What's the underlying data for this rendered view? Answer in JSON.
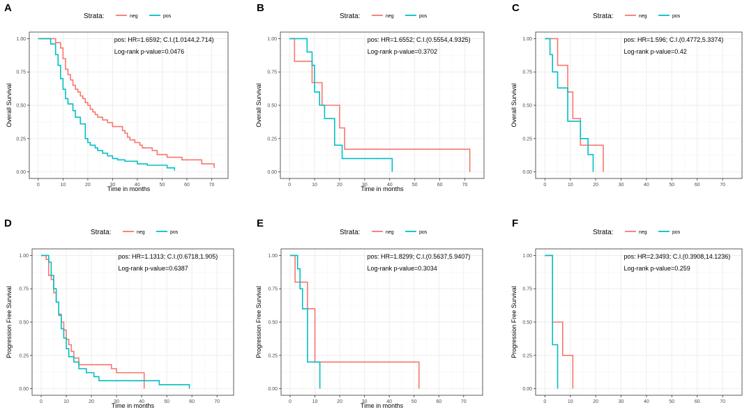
{
  "colors": {
    "neg": "#F8766D",
    "pos": "#00BFC4"
  },
  "chart_data": [
    {
      "type": "line",
      "panel": "A",
      "legend": {
        "title": "Strata:",
        "entries": [
          "neg",
          "pos"
        ]
      },
      "xlabel": "Time in months",
      "ylabel": "Overall Survival",
      "xlim": [
        0,
        73
      ],
      "ylim": [
        0,
        1
      ],
      "xticks": [
        "0",
        "10",
        "20",
        "30",
        "40",
        "50",
        "60",
        "70"
      ],
      "yticks": [
        "0.00",
        "0.25",
        "0.50",
        "0.75",
        "1.00"
      ],
      "annotations": [
        "pos: HR=1.6592; C.I.(1.0144,2.714)",
        "Log-rank p-value=0.0476"
      ],
      "series": [
        {
          "name": "neg",
          "x": [
            0,
            5,
            7,
            9,
            10,
            11,
            12,
            13,
            14,
            15,
            16,
            17,
            18,
            19,
            20,
            21,
            22,
            23,
            24,
            26,
            28,
            30,
            34,
            35,
            36,
            37,
            39,
            41,
            42,
            46,
            48,
            52,
            58,
            66,
            71
          ],
          "y": [
            1,
            1,
            0.97,
            0.93,
            0.85,
            0.77,
            0.73,
            0.69,
            0.65,
            0.62,
            0.6,
            0.57,
            0.55,
            0.52,
            0.5,
            0.47,
            0.45,
            0.43,
            0.41,
            0.39,
            0.37,
            0.34,
            0.31,
            0.29,
            0.26,
            0.24,
            0.22,
            0.2,
            0.18,
            0.16,
            0.13,
            0.11,
            0.09,
            0.06,
            0.03
          ]
        },
        {
          "name": "pos",
          "x": [
            0,
            5,
            7,
            8,
            9,
            10,
            11,
            12,
            14,
            15,
            17,
            19,
            20,
            21,
            23,
            24,
            26,
            28,
            30,
            32,
            35,
            40,
            44,
            52,
            55
          ],
          "y": [
            1,
            0.96,
            0.88,
            0.8,
            0.7,
            0.62,
            0.55,
            0.51,
            0.46,
            0.41,
            0.36,
            0.25,
            0.22,
            0.2,
            0.18,
            0.16,
            0.14,
            0.12,
            0.1,
            0.09,
            0.08,
            0.06,
            0.05,
            0.03,
            0.01
          ]
        }
      ]
    },
    {
      "type": "line",
      "panel": "B",
      "legend": {
        "title": "Strata:",
        "entries": [
          "neg",
          "pos"
        ]
      },
      "xlabel": "Time in months",
      "ylabel": "Overall Survival",
      "xlim": [
        0,
        74
      ],
      "ylim": [
        0,
        1
      ],
      "xticks": [
        "0",
        "10",
        "20",
        "30",
        "40",
        "50",
        "60",
        "70"
      ],
      "yticks": [
        "0.00",
        "0.25",
        "0.50",
        "0.75",
        "1.00"
      ],
      "annotations": [
        "pos: HR=1.6552; C.I.(0.5554,4.9325)",
        "Log-rank p-value=0.3702"
      ],
      "series": [
        {
          "name": "neg",
          "x": [
            0,
            2,
            9,
            13,
            20,
            22,
            72
          ],
          "y": [
            1,
            0.83,
            0.67,
            0.5,
            0.33,
            0.17,
            0.0
          ]
        },
        {
          "name": "pos",
          "x": [
            0,
            7,
            9,
            10,
            12,
            14,
            18,
            21,
            41
          ],
          "y": [
            1,
            0.9,
            0.8,
            0.6,
            0.5,
            0.4,
            0.2,
            0.1,
            0.0
          ]
        }
      ]
    },
    {
      "type": "line",
      "panel": "C",
      "legend": {
        "title": "Strata:",
        "entries": [
          "neg",
          "pos"
        ]
      },
      "xlabel": "",
      "ylabel": "Overall Survival",
      "xlim": [
        0,
        74
      ],
      "ylim": [
        0,
        1
      ],
      "xticks": [
        "0",
        "10",
        "20",
        "30",
        "40",
        "50",
        "60",
        "70"
      ],
      "yticks": [
        "0.00",
        "0.25",
        "0.50",
        "0.75",
        "1.00"
      ],
      "annotations": [
        "pos: HR=1.596; C.I.(0.4772,5.3374)",
        "Log-rank p-value=0.42"
      ],
      "series": [
        {
          "name": "neg",
          "x": [
            0,
            5,
            9,
            11,
            14,
            23
          ],
          "y": [
            1,
            0.8,
            0.6,
            0.4,
            0.2,
            0.0
          ]
        },
        {
          "name": "pos",
          "x": [
            0,
            2,
            3,
            5,
            9,
            14,
            17,
            19
          ],
          "y": [
            1,
            0.88,
            0.75,
            0.63,
            0.38,
            0.25,
            0.13,
            0.0
          ]
        }
      ]
    },
    {
      "type": "line",
      "panel": "D",
      "legend": {
        "title": "Strata:",
        "entries": [
          "neg",
          "pos"
        ]
      },
      "xlabel": "Time in months",
      "ylabel": "Progression Free Survival",
      "xlim": [
        0,
        73
      ],
      "ylim": [
        0,
        1
      ],
      "xticks": [
        "0",
        "10",
        "20",
        "30",
        "40",
        "50",
        "60",
        "70"
      ],
      "yticks": [
        "0.00",
        "0.25",
        "0.50",
        "0.75",
        "1.00"
      ],
      "annotations": [
        "pos: HR=1.1313; C.I.(0.6718,1.905)",
        "Log-rank p-value=0.6387"
      ],
      "series": [
        {
          "name": "neg",
          "x": [
            0,
            2,
            3,
            4,
            5,
            6,
            7,
            8,
            9,
            10,
            11,
            12,
            13,
            15,
            28,
            30,
            41
          ],
          "y": [
            1,
            0.97,
            0.85,
            0.82,
            0.72,
            0.65,
            0.56,
            0.5,
            0.44,
            0.37,
            0.33,
            0.28,
            0.23,
            0.18,
            0.15,
            0.12,
            0.0
          ]
        },
        {
          "name": "pos",
          "x": [
            0,
            3,
            4,
            5,
            6,
            7,
            8,
            9,
            10,
            11,
            13,
            15,
            18,
            21,
            23,
            47,
            59
          ],
          "y": [
            1,
            0.95,
            0.85,
            0.75,
            0.65,
            0.55,
            0.45,
            0.38,
            0.3,
            0.24,
            0.2,
            0.15,
            0.12,
            0.09,
            0.06,
            0.03,
            0.0
          ]
        }
      ]
    },
    {
      "type": "line",
      "panel": "E",
      "legend": {
        "title": "Strata:",
        "entries": [
          "neg",
          "pos"
        ]
      },
      "xlabel": "Time in months",
      "ylabel": "Progression Free Survival",
      "xlim": [
        0,
        74
      ],
      "ylim": [
        0,
        1
      ],
      "xticks": [
        "0",
        "10",
        "20",
        "30",
        "40",
        "50",
        "60",
        "70"
      ],
      "yticks": [
        "0.00",
        "0.25",
        "0.50",
        "0.75",
        "1.00"
      ],
      "annotations": [
        "pos: HR=1.8299; C.I.(0.5637,5.9407)",
        "Log-rank p-value=0.3034"
      ],
      "series": [
        {
          "name": "neg",
          "x": [
            0,
            2,
            7,
            10,
            52
          ],
          "y": [
            1,
            0.8,
            0.6,
            0.2,
            0.0
          ]
        },
        {
          "name": "pos",
          "x": [
            0,
            3,
            4,
            5,
            7,
            12
          ],
          "y": [
            1,
            0.9,
            0.75,
            0.6,
            0.2,
            0.0
          ]
        }
      ]
    },
    {
      "type": "line",
      "panel": "F",
      "legend": {
        "title": "Strata:",
        "entries": [
          "neg",
          "pos"
        ]
      },
      "xlabel": "",
      "ylabel": "Progression Free Survival",
      "xlim": [
        0,
        74
      ],
      "ylim": [
        0,
        1
      ],
      "xticks": [
        "0",
        "10",
        "20",
        "30",
        "40",
        "50",
        "60",
        "70"
      ],
      "yticks": [
        "0.00",
        "0.25",
        "0.50",
        "0.75",
        "1.00"
      ],
      "annotations": [
        "pos: HR=2.3493; C.I.(0.3908,14.1236)",
        "Log-rank p-value=0.259"
      ],
      "series": [
        {
          "name": "neg",
          "x": [
            0,
            3,
            7,
            11
          ],
          "y": [
            1,
            0.5,
            0.25,
            0.0
          ]
        },
        {
          "name": "pos",
          "x": [
            0,
            3,
            4,
            5
          ],
          "y": [
            1,
            0.33,
            0.33,
            0.0
          ]
        }
      ]
    }
  ]
}
